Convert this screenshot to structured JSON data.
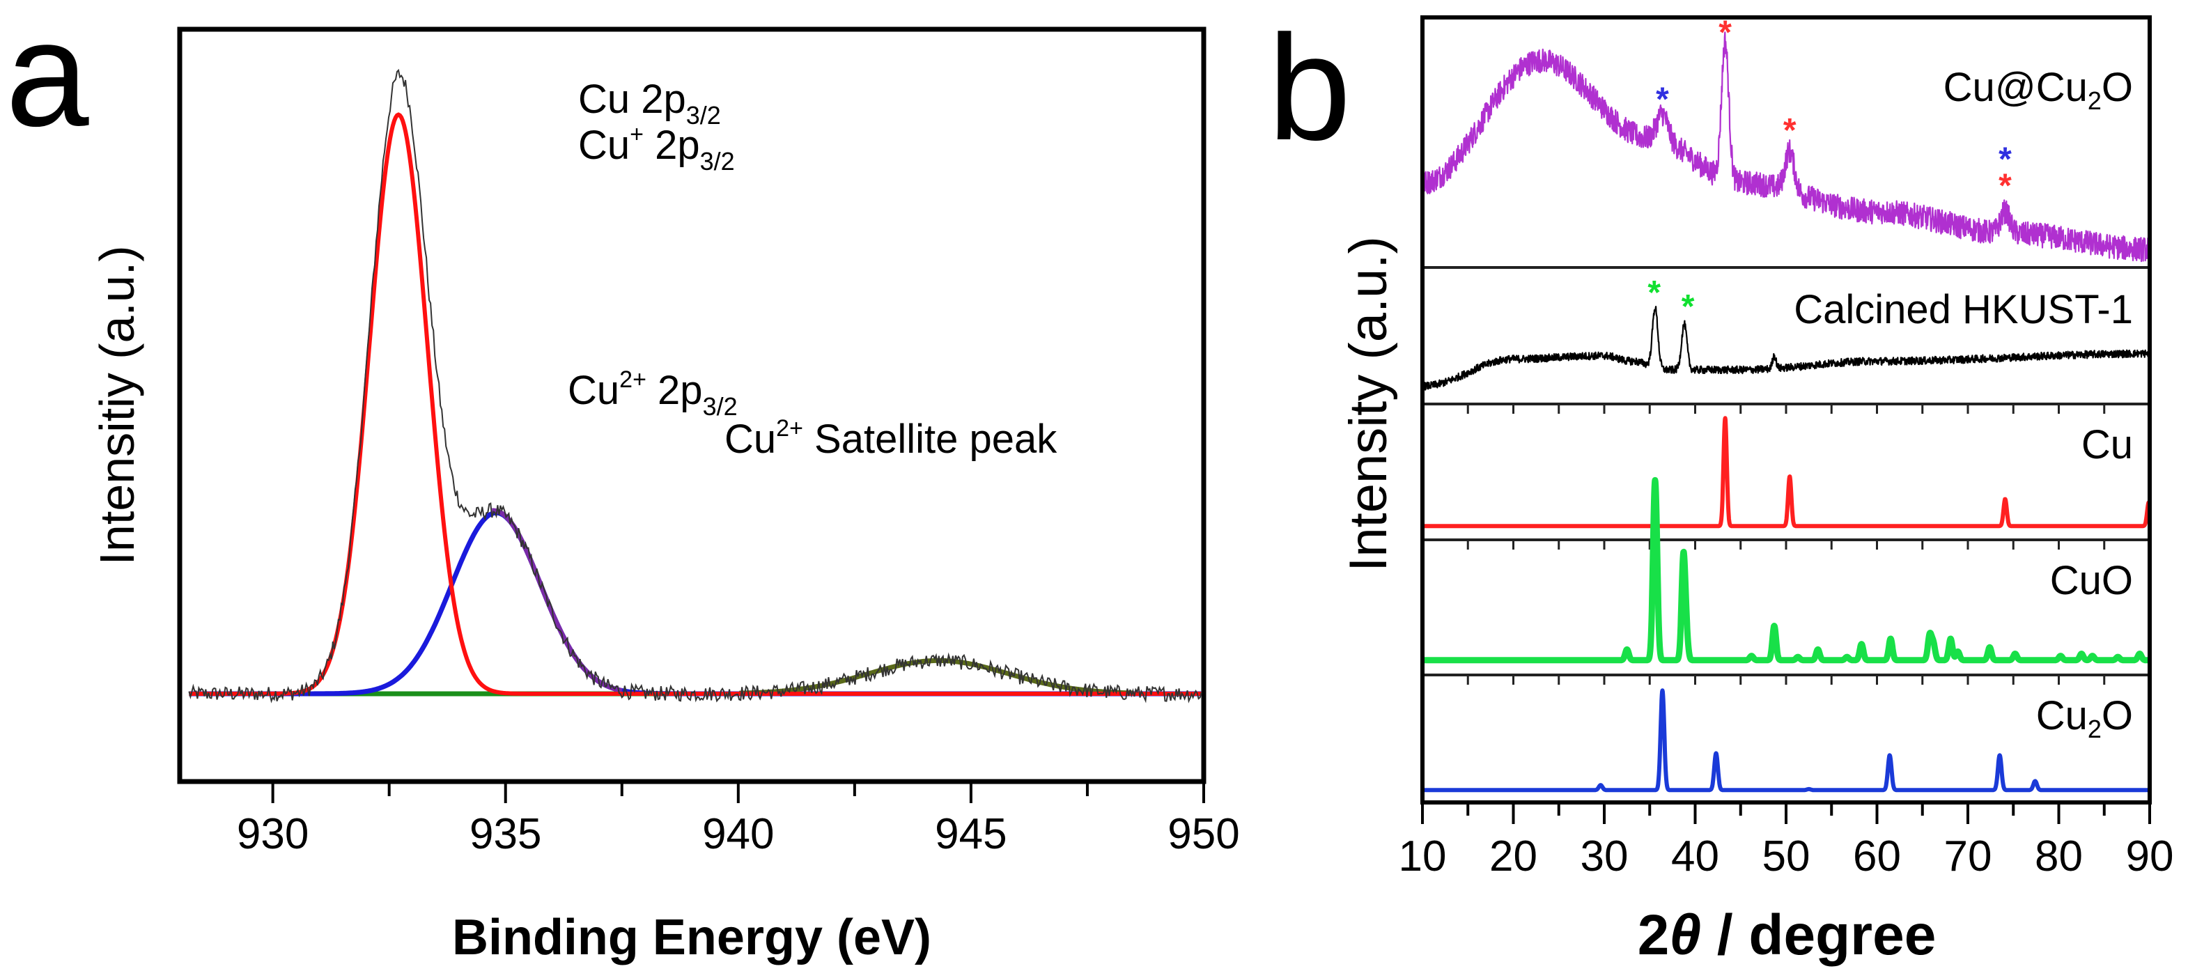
{
  "figure": {
    "panel_labels": [
      "a",
      "b"
    ]
  },
  "chart_data": [
    {
      "panel": "a",
      "type": "line",
      "title": "",
      "xlabel": "Binding Energy (eV)",
      "ylabel": "Intensitiy (a.u.)",
      "xlim": [
        928,
        950
      ],
      "ylim": [
        -0.35,
        1.1
      ],
      "x_ticks": [
        930,
        935,
        940,
        945,
        950
      ],
      "x_tick_labels": [
        "930",
        "935",
        "940",
        "945",
        "950"
      ],
      "grid": false,
      "annotations": [
        {
          "text": "Cu 2p",
          "sub": "3/2",
          "sup": "",
          "x": 933.2,
          "y": 1.0
        },
        {
          "text": "Cu",
          "sup": "+",
          "rest": " 2p",
          "sub": "3/2",
          "x": 933.2,
          "y": 0.88
        },
        {
          "text": "Cu",
          "sup": "2+",
          "rest": " 2p",
          "sub": "3/2",
          "x": 934.8,
          "y": 0.4
        },
        {
          "text": "Cu",
          "sup": "2+",
          "rest": " Satellite peak",
          "sub": "",
          "x": 941.7,
          "y": 0.2
        }
      ],
      "series": [
        {
          "name": "Raw data",
          "color": "#333333",
          "kind": "raw",
          "peaks": [
            {
              "center": 932.7,
              "height": 1.0,
              "sigma": 0.62
            },
            {
              "center": 934.8,
              "height": 0.3,
              "sigma": 0.95
            },
            {
              "center": 944.3,
              "height": 0.055,
              "sigma": 1.5
            }
          ]
        },
        {
          "name": "Cu 2p3/2 / Cu+ 2p3/2 fit",
          "color": "#ff1010",
          "center": 932.7,
          "height": 0.96,
          "sigma": 0.62
        },
        {
          "name": "Cu2+ 2p3/2 fit",
          "color": "#1a1adc",
          "center": 934.8,
          "height": 0.3,
          "sigma": 0.95
        },
        {
          "name": "Cu2+ satellite fit",
          "color": "#1a1adc",
          "center": 944.3,
          "height": 0.055,
          "sigma": 1.5,
          "baseline_only": true
        },
        {
          "name": "Envelope",
          "color": "#7a2aa8",
          "kind": "envelope"
        },
        {
          "name": "Background",
          "color": "#1a8f1a",
          "kind": "baseline"
        },
        {
          "name": "Satellite envelope",
          "color": "#5a6a1a",
          "center": 944.3,
          "height": 0.055,
          "sigma": 1.5
        }
      ]
    },
    {
      "panel": "b",
      "type": "line",
      "title": "",
      "xlabel": "2θ / degree",
      "xlabel_parts": {
        "prefix": "2",
        "theta": "θ",
        "suffix": " / degree"
      },
      "ylabel": "Intensity (a.u.)",
      "xlim": [
        10,
        90
      ],
      "x_ticks": [
        10,
        20,
        30,
        40,
        50,
        60,
        70,
        80,
        90
      ],
      "x_tick_labels": [
        "10",
        "20",
        "30",
        "40",
        "50",
        "60",
        "70",
        "80",
        "90"
      ],
      "grid": false,
      "stacked_subpanels": [
        {
          "label": "Cu@Cu2O",
          "label_main": "Cu@Cu",
          "label_sub": "2",
          "label_tail": "O",
          "color": "#b030d0",
          "kind": "noisy",
          "baseline": [
            [
              10,
              0.35
            ],
            [
              23,
              0.9
            ],
            [
              35,
              0.55
            ],
            [
              45,
              0.35
            ],
            [
              60,
              0.22
            ],
            [
              75,
              0.12
            ],
            [
              90,
              0.05
            ]
          ],
          "peaks": [
            {
              "x": 36.4,
              "h": 0.12,
              "w": 0.6
            },
            {
              "x": 43.3,
              "h": 0.62,
              "w": 0.4
            },
            {
              "x": 50.4,
              "h": 0.18,
              "w": 0.5
            },
            {
              "x": 74.1,
              "h": 0.1,
              "w": 0.5
            }
          ],
          "markers": [
            {
              "x": 36.4,
              "color": "#3030e0",
              "y": 0.72
            },
            {
              "x": 43.3,
              "color": "#ff3030",
              "y": 1.02
            },
            {
              "x": 50.4,
              "color": "#ff3030",
              "y": 0.58
            },
            {
              "x": 74.1,
              "color": "#3030e0",
              "y": 0.45
            },
            {
              "x": 74.1,
              "color": "#ff3030",
              "y": 0.33
            }
          ]
        },
        {
          "label": "Calcined HKUST-1",
          "label_main": "Calcined HKUST-1",
          "label_sub": "",
          "label_tail": "",
          "color": "#000000",
          "kind": "noisy",
          "baseline": [
            [
              10,
              0.1
            ],
            [
              20,
              0.35
            ],
            [
              30,
              0.38
            ],
            [
              33,
              0.33
            ],
            [
              37,
              0.25
            ],
            [
              45,
              0.25
            ],
            [
              60,
              0.33
            ],
            [
              90,
              0.4
            ]
          ],
          "peaks": [
            {
              "x": 35.6,
              "h": 0.55,
              "w": 0.3
            },
            {
              "x": 38.8,
              "h": 0.42,
              "w": 0.3
            },
            {
              "x": 48.7,
              "h": 0.12,
              "w": 0.2
            }
          ],
          "markers": [
            {
              "x": 35.5,
              "color": "#10e030",
              "y": 0.95
            },
            {
              "x": 39.2,
              "color": "#10e030",
              "y": 0.82
            }
          ]
        },
        {
          "label": "Cu",
          "label_main": "Cu",
          "label_sub": "",
          "label_tail": "",
          "color": "#ff2020",
          "kind": "sticks",
          "baseline": [
            [
              10,
              0.05
            ],
            [
              90,
              0.05
            ]
          ],
          "peaks": [
            {
              "x": 43.3,
              "h": 1.0,
              "w": 0.18
            },
            {
              "x": 50.4,
              "h": 0.46,
              "w": 0.18
            },
            {
              "x": 74.1,
              "h": 0.25,
              "w": 0.18
            },
            {
              "x": 89.9,
              "h": 0.22,
              "w": 0.18
            }
          ],
          "markers": []
        },
        {
          "label": "CuO",
          "label_main": "CuO",
          "label_sub": "",
          "label_tail": "",
          "color": "#18e048",
          "kind": "sticks",
          "baseline": [
            [
              10,
              0.06
            ],
            [
              90,
              0.06
            ]
          ],
          "peaks": [
            {
              "x": 32.5,
              "h": 0.1,
              "w": 0.2
            },
            {
              "x": 35.5,
              "h": 1.0,
              "w": 0.2
            },
            {
              "x": 35.7,
              "h": 0.9,
              "w": 0.2
            },
            {
              "x": 38.7,
              "h": 0.92,
              "w": 0.2
            },
            {
              "x": 39.0,
              "h": 0.25,
              "w": 0.2
            },
            {
              "x": 46.2,
              "h": 0.04,
              "w": 0.2
            },
            {
              "x": 48.7,
              "h": 0.32,
              "w": 0.2
            },
            {
              "x": 51.3,
              "h": 0.03,
              "w": 0.2
            },
            {
              "x": 53.5,
              "h": 0.1,
              "w": 0.2
            },
            {
              "x": 56.7,
              "h": 0.03,
              "w": 0.2
            },
            {
              "x": 58.3,
              "h": 0.15,
              "w": 0.2
            },
            {
              "x": 61.5,
              "h": 0.2,
              "w": 0.2
            },
            {
              "x": 65.8,
              "h": 0.23,
              "w": 0.2
            },
            {
              "x": 66.2,
              "h": 0.15,
              "w": 0.2
            },
            {
              "x": 68.1,
              "h": 0.2,
              "w": 0.2
            },
            {
              "x": 68.9,
              "h": 0.08,
              "w": 0.2
            },
            {
              "x": 72.4,
              "h": 0.12,
              "w": 0.2
            },
            {
              "x": 75.2,
              "h": 0.06,
              "w": 0.2
            },
            {
              "x": 80.2,
              "h": 0.04,
              "w": 0.2
            },
            {
              "x": 82.5,
              "h": 0.06,
              "w": 0.2
            },
            {
              "x": 83.7,
              "h": 0.04,
              "w": 0.2
            },
            {
              "x": 86.5,
              "h": 0.03,
              "w": 0.2
            },
            {
              "x": 88.9,
              "h": 0.06,
              "w": 0.2
            }
          ],
          "markers": []
        },
        {
          "label": "Cu2O",
          "label_main": "Cu",
          "label_sub": "2",
          "label_tail": "O",
          "color": "#1a3ad8",
          "kind": "sticks",
          "baseline": [
            [
              10,
              0.04
            ],
            [
              90,
              0.04
            ]
          ],
          "peaks": [
            {
              "x": 29.6,
              "h": 0.05,
              "w": 0.2
            },
            {
              "x": 36.4,
              "h": 1.0,
              "w": 0.2
            },
            {
              "x": 42.3,
              "h": 0.37,
              "w": 0.2
            },
            {
              "x": 52.5,
              "h": 0.01,
              "w": 0.2
            },
            {
              "x": 61.4,
              "h": 0.35,
              "w": 0.2
            },
            {
              "x": 73.5,
              "h": 0.35,
              "w": 0.2
            },
            {
              "x": 77.4,
              "h": 0.09,
              "w": 0.2
            }
          ],
          "markers": []
        }
      ]
    }
  ]
}
